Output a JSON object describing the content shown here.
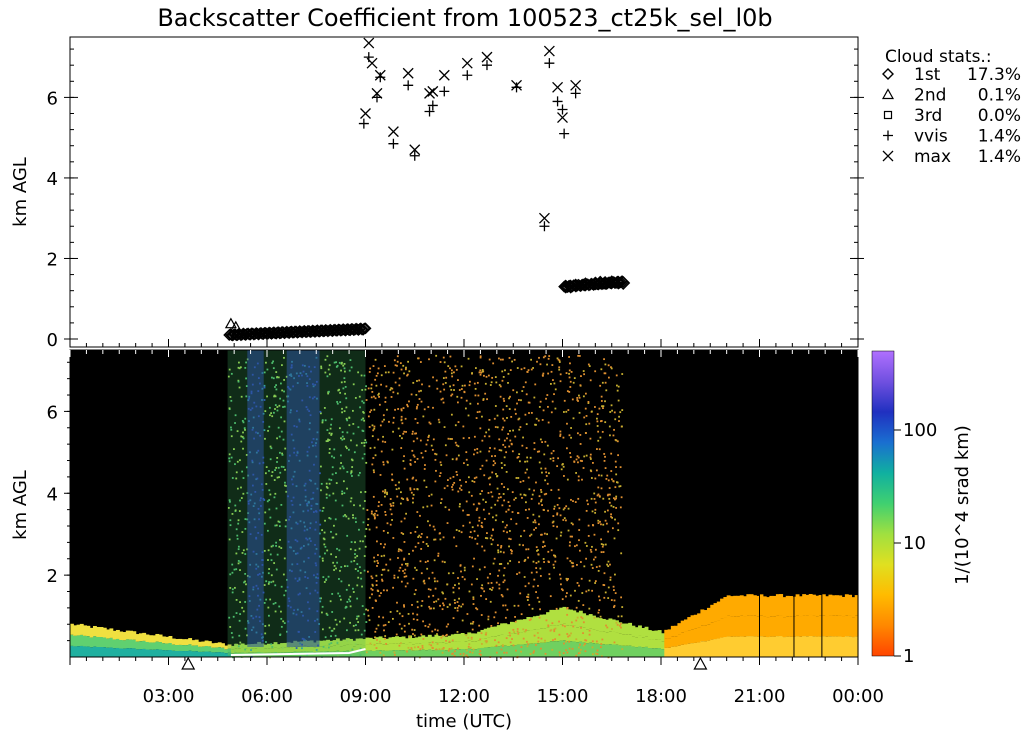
{
  "title": "Backscatter Coefficient from 100523_ct25k_sel_l0b",
  "colors": {
    "background": "#ffffff",
    "ink": "#000000",
    "image_bg": "#000000",
    "colormap": [
      "#ff4400",
      "#ff8800",
      "#ffbb00",
      "#e0e020",
      "#a0e040",
      "#40d070",
      "#10b0a0",
      "#1a6fd0",
      "#2030c0",
      "#7050e0",
      "#b070ff"
    ]
  },
  "chart_data": [
    {
      "type": "scatter",
      "panel": "cloud-base-heights",
      "ylabel": "km AGL",
      "xlim_hours": [
        0,
        24
      ],
      "ylim": [
        0,
        7.5
      ],
      "yticks": [
        0,
        2,
        4,
        6
      ],
      "legend": {
        "title": "Cloud stats.:",
        "placement": "right",
        "entries": [
          {
            "symbol": "diamond",
            "label": "1st",
            "value": "17.3%"
          },
          {
            "symbol": "triangle",
            "label": "2nd",
            "value": "0.1%"
          },
          {
            "symbol": "square",
            "label": "3rd",
            "value": "0.0%"
          },
          {
            "symbol": "plus",
            "label": "vvis",
            "value": "1.4%"
          },
          {
            "symbol": "cross",
            "label": "max",
            "value": "1.4%"
          }
        ]
      },
      "series": [
        {
          "name": "1st",
          "symbol": "diamond",
          "x_range_dense": [
            [
              4.85,
              9.0,
              0.1,
              0.25
            ],
            [
              15.05,
              16.85,
              1.3,
              1.42
            ]
          ],
          "x": [
            15.1,
            15.25,
            15.4,
            15.7,
            16.0,
            16.15,
            16.3,
            16.5,
            16.7,
            16.85
          ],
          "y": [
            1.3,
            1.3,
            1.33,
            1.36,
            1.38,
            1.4,
            1.39,
            1.41,
            1.4,
            1.39
          ]
        },
        {
          "name": "2nd",
          "symbol": "triangle",
          "x": [
            4.9,
            5.05
          ],
          "y": [
            0.38,
            0.3
          ]
        },
        {
          "name": "vvis",
          "symbol": "plus",
          "x": [
            8.95,
            9.1,
            9.35,
            9.45,
            9.85,
            10.3,
            10.5,
            10.95,
            11.05,
            11.4,
            12.1,
            12.7,
            13.6,
            14.45,
            14.6,
            14.85,
            15.0,
            15.05,
            15.4
          ],
          "y": [
            5.35,
            7.0,
            6.0,
            6.5,
            4.85,
            6.3,
            4.55,
            5.65,
            5.8,
            6.15,
            6.55,
            6.8,
            6.25,
            2.8,
            6.85,
            5.9,
            5.7,
            5.1,
            6.1
          ]
        },
        {
          "name": "max",
          "symbol": "cross",
          "x": [
            9.0,
            9.1,
            9.2,
            9.35,
            9.45,
            9.85,
            10.3,
            10.5,
            10.95,
            11.05,
            11.4,
            12.1,
            12.7,
            13.6,
            14.45,
            14.6,
            14.85,
            15.0,
            15.4
          ],
          "y": [
            5.6,
            7.35,
            6.85,
            6.1,
            6.55,
            5.15,
            6.6,
            4.7,
            6.1,
            6.15,
            6.55,
            6.85,
            7.0,
            6.3,
            3.0,
            7.15,
            6.25,
            5.5,
            6.3
          ]
        }
      ]
    },
    {
      "type": "heatmap",
      "panel": "backscatter-image",
      "xlabel": "time (UTC)",
      "ylabel": "km AGL",
      "xlim_hours": [
        0,
        24
      ],
      "ylim": [
        0,
        7.5
      ],
      "yticks": [
        2,
        4,
        6
      ],
      "xtick_labels": [
        "03:00",
        "06:00",
        "09:00",
        "12:00",
        "15:00",
        "18:00",
        "21:00",
        "00:00"
      ],
      "xtick_hours": [
        3,
        6,
        9,
        12,
        15,
        18,
        21,
        24
      ],
      "colorbar": {
        "label": "1/(10^4 srad km)",
        "scale": "log",
        "range": [
          1,
          500
        ],
        "ticks": [
          1,
          10,
          100
        ],
        "tick_labels": [
          "1",
          "10",
          "100"
        ]
      },
      "fog_layer_top_km": [
        [
          0,
          0.8
        ],
        [
          4.8,
          0.3
        ],
        [
          9.0,
          0.45
        ],
        [
          12.0,
          0.55
        ],
        [
          15.0,
          1.2
        ],
        [
          18.0,
          0.6
        ],
        [
          20.0,
          1.5
        ],
        [
          24.0,
          1.5
        ]
      ],
      "noise_region_hours": [
        4.8,
        16.8
      ],
      "dense_blue_bands_hours": [
        [
          5.4,
          5.9
        ],
        [
          6.6,
          7.6
        ]
      ],
      "triangle_markers_hours": [
        3.6,
        19.2
      ]
    }
  ]
}
